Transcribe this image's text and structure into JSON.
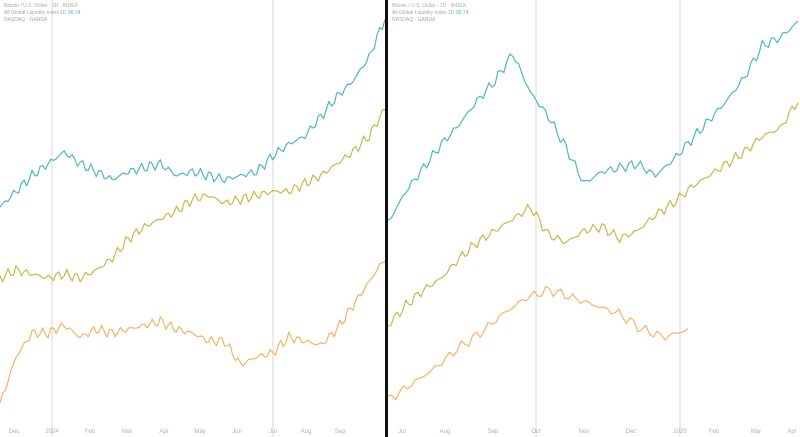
{
  "colors": {
    "teal": "#4fb6c6",
    "olive": "#c9b84a",
    "orange": "#f5b366",
    "grid": "#d8d8d8",
    "divider": "#111111"
  },
  "legend": {
    "line1": "Bitcoin / U.S. Dollar · 1D · INDEX",
    "line2": "All Global Liquidity Index 1D",
    "line2_value": "96.74",
    "line3": "NASDAQ · GANDA"
  },
  "chart_data": [
    {
      "type": "line",
      "xlabel": "",
      "ylabel": "",
      "x_ticks": [
        "Dec",
        "2024",
        "Feb",
        "Mar",
        "Apr",
        "May",
        "Jun",
        "Jul",
        "Aug",
        "Sep"
      ],
      "grid": "vertical lines at 2024 and Jul",
      "series": [
        {
          "color": "teal",
          "values": [
            0.52,
            0.56,
            0.6,
            0.63,
            0.66,
            0.63,
            0.61,
            0.59,
            0.61,
            0.62,
            0.63,
            0.6,
            0.61,
            0.6,
            0.59,
            0.6,
            0.61,
            0.65,
            0.68,
            0.7,
            0.75,
            0.8,
            0.84,
            0.9,
            1.0
          ]
        },
        {
          "color": "olive",
          "values": [
            0.34,
            0.36,
            0.35,
            0.34,
            0.35,
            0.34,
            0.36,
            0.39,
            0.44,
            0.47,
            0.49,
            0.51,
            0.54,
            0.55,
            0.53,
            0.54,
            0.55,
            0.56,
            0.56,
            0.58,
            0.6,
            0.63,
            0.66,
            0.7,
            0.77
          ]
        },
        {
          "color": "orange",
          "values": [
            0.02,
            0.14,
            0.2,
            0.2,
            0.22,
            0.19,
            0.21,
            0.2,
            0.21,
            0.22,
            0.23,
            0.21,
            0.2,
            0.18,
            0.18,
            0.12,
            0.14,
            0.15,
            0.19,
            0.18,
            0.17,
            0.21,
            0.27,
            0.33,
            0.39
          ]
        }
      ]
    },
    {
      "type": "line",
      "xlabel": "",
      "ylabel": "",
      "x_ticks": [
        "Jul",
        "Aug",
        "Sep",
        "Oct",
        "Nov",
        "Dec",
        "2025",
        "Feb",
        "Mar",
        "Apr"
      ],
      "grid": "vertical lines at Oct and 2025",
      "series": [
        {
          "color": "teal",
          "values": [
            0.48,
            0.56,
            0.62,
            0.68,
            0.73,
            0.79,
            0.84,
            0.91,
            0.81,
            0.75,
            0.67,
            0.58,
            0.61,
            0.62,
            0.63,
            0.6,
            0.64,
            0.69,
            0.74,
            0.79,
            0.85,
            0.93,
            0.95,
            0.99
          ]
        },
        {
          "color": "olive",
          "values": [
            0.22,
            0.27,
            0.31,
            0.34,
            0.39,
            0.43,
            0.46,
            0.49,
            0.52,
            0.45,
            0.43,
            0.46,
            0.47,
            0.44,
            0.46,
            0.5,
            0.53,
            0.57,
            0.6,
            0.63,
            0.66,
            0.7,
            0.72,
            0.79
          ]
        },
        {
          "color": "orange",
          "values": [
            0.03,
            0.07,
            0.11,
            0.16,
            0.2,
            0.25,
            0.29,
            0.31,
            0.29,
            0.27,
            0.25,
            0.21,
            0.19,
            0.21
          ]
        }
      ]
    }
  ]
}
